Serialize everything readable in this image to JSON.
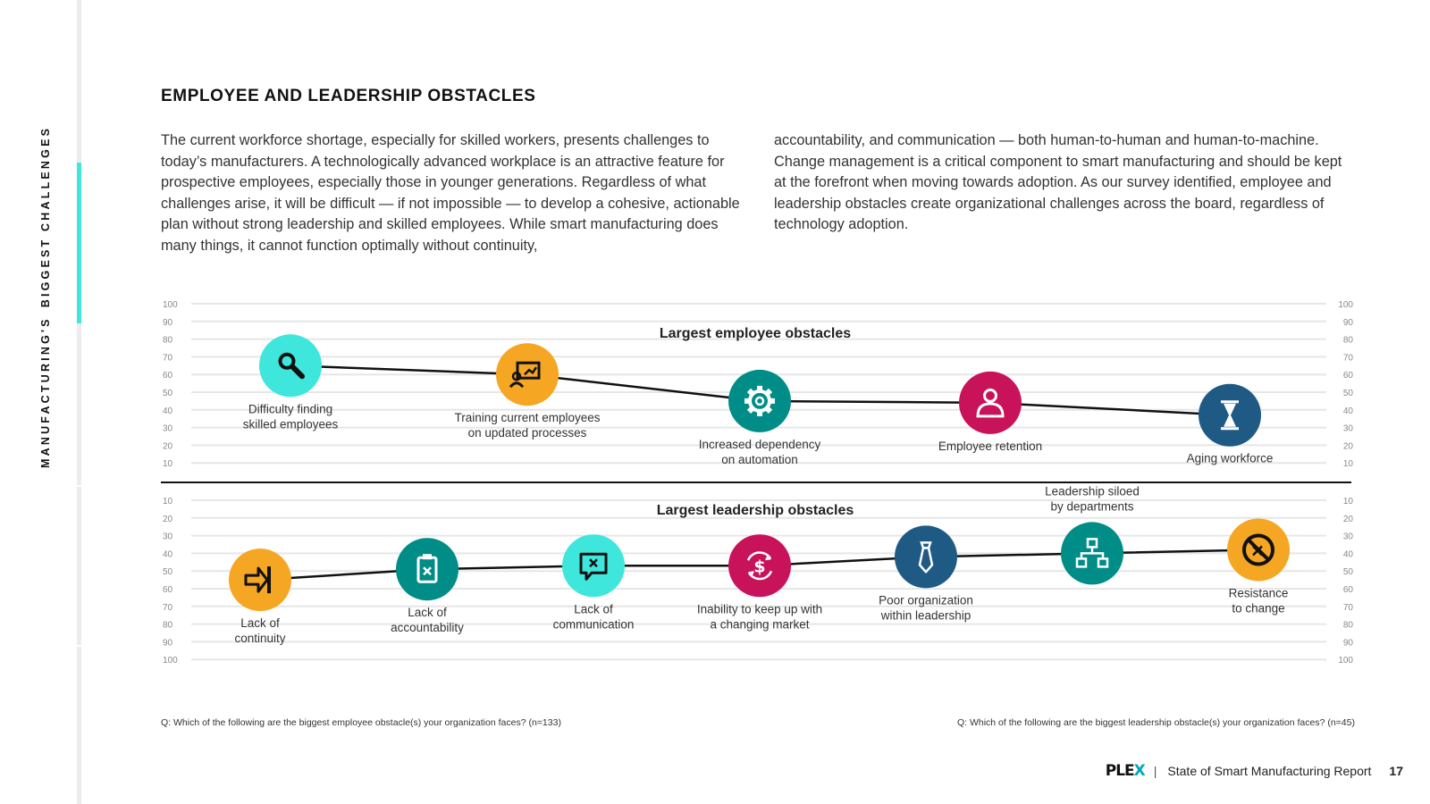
{
  "section_label": {
    "part1": "MANUFACTURING'S",
    "part2": "BIGGEST CHALLENGES"
  },
  "heading": "EMPLOYEE AND LEADERSHIP OBSTACLES",
  "paragraph_left": "The current workforce shortage, especially for skilled workers, presents challenges to today’s manufacturers. A technologically advanced workplace is an attractive feature for prospective employees, especially those in younger generations. Regardless of what challenges arise, it will be difficult — if not impossible — to develop a cohesive, actionable plan without strong leadership and skilled employees. While smart manufacturing does many things, it cannot function optimally without continuity,",
  "paragraph_right": "accountability, and communication — both human-to-human and human-to-machine. Change management is a critical component to smart manufacturing and should be kept at the forefront when moving towards adoption. As our survey identified, employee and leadership obstacles create organizational challenges across the board, regardless of technology adoption.",
  "chart_data": [
    {
      "type": "line",
      "title": "Largest employee obstacles",
      "ylim": [
        0,
        100
      ],
      "ticks": [
        100,
        90,
        80,
        70,
        60,
        50,
        40,
        30,
        20,
        10
      ],
      "points": [
        {
          "label": [
            "Difficulty finding",
            "skilled employees"
          ],
          "value": 65,
          "icon": "magnifier-icon",
          "color": "#3ee6dc",
          "label_pos": "below"
        },
        {
          "label": [
            "Training current employees",
            "on updated processes"
          ],
          "value": 60,
          "icon": "presentation-board-icon",
          "color": "#f5a623",
          "label_pos": "below"
        },
        {
          "label": [
            "Increased dependency",
            "on automation"
          ],
          "value": 45,
          "icon": "gear-icon",
          "color": "#008c87",
          "label_pos": "below"
        },
        {
          "label": [
            "Employee retention"
          ],
          "value": 44,
          "icon": "person-icon",
          "color": "#c8125a",
          "label_pos": "below"
        },
        {
          "label": [
            "Aging workforce"
          ],
          "value": 37,
          "icon": "hourglass-icon",
          "color": "#1f5a85",
          "label_pos": "below"
        }
      ]
    },
    {
      "type": "line",
      "title": "Largest leadership obstacles",
      "ylim": [
        0,
        100
      ],
      "inverted": true,
      "ticks": [
        10,
        20,
        30,
        40,
        50,
        60,
        70,
        80,
        90,
        100
      ],
      "points": [
        {
          "label": [
            "Lack of",
            "continuity"
          ],
          "value": 55,
          "icon": "arrow-into-bar-icon",
          "color": "#f5a623",
          "label_pos": "below"
        },
        {
          "label": [
            "Lack of",
            "accountability"
          ],
          "value": 49,
          "icon": "clipboard-x-icon",
          "color": "#008c87",
          "label_pos": "below"
        },
        {
          "label": [
            "Lack of",
            "communication"
          ],
          "value": 47,
          "icon": "speech-bubble-x-icon",
          "color": "#3ee6dc",
          "label_pos": "below"
        },
        {
          "label": [
            "Inability to keep up with",
            "a changing market"
          ],
          "value": 47,
          "icon": "dollar-cycle-icon",
          "color": "#c8125a",
          "label_pos": "below"
        },
        {
          "label": [
            "Poor organization",
            "within leadership"
          ],
          "value": 42,
          "icon": "necktie-icon",
          "color": "#1f5a85",
          "label_pos": "below"
        },
        {
          "label": [
            "Leadership siloed",
            "by departments"
          ],
          "value": 40,
          "icon": "org-chart-icon",
          "color": "#008c87",
          "label_pos": "above"
        },
        {
          "label": [
            "Resistance",
            "to change"
          ],
          "value": 38,
          "icon": "no-symbol-icon",
          "color": "#f5a623",
          "label_pos": "below"
        }
      ]
    }
  ],
  "footnote_left": "Q: Which of the following are the biggest employee obstacle(s) your organization faces? (n=133)",
  "footnote_right": "Q: Which of the following are the biggest leadership obstacle(s) your organization faces? (n=45)",
  "footer": {
    "logo_a": "PLE",
    "logo_b": "X",
    "separator": "|",
    "report": "State of Smart Manufacturing Report",
    "page": "17"
  },
  "colors": {
    "accent": "#3ee6dc",
    "text": "#2b2b2b",
    "grid": "#e6e6e6"
  }
}
